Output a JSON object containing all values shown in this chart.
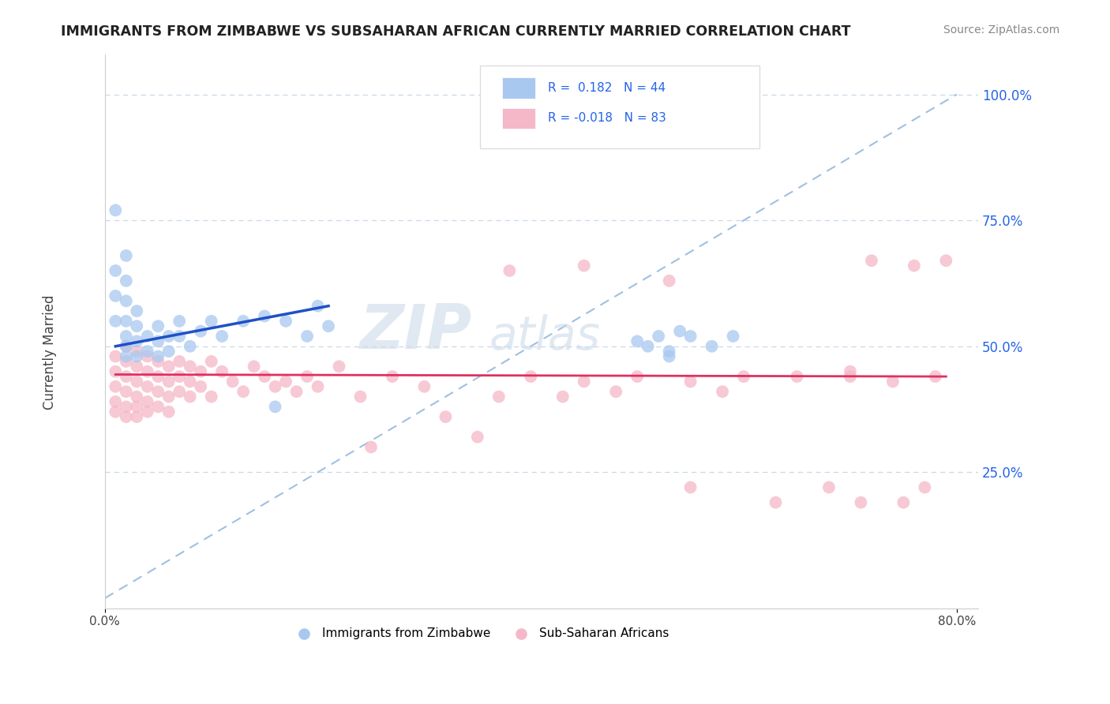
{
  "title": "IMMIGRANTS FROM ZIMBABWE VS SUBSAHARAN AFRICAN CURRENTLY MARRIED CORRELATION CHART",
  "source": "Source: ZipAtlas.com",
  "ylabel": "Currently Married",
  "legend_label1": "Immigrants from Zimbabwe",
  "legend_label2": "Sub-Saharan Africans",
  "ytick_labels": [
    "25.0%",
    "50.0%",
    "75.0%",
    "100.0%"
  ],
  "ytick_values": [
    0.25,
    0.5,
    0.75,
    1.0
  ],
  "xlim": [
    0.0,
    0.82
  ],
  "ylim": [
    -0.02,
    1.08
  ],
  "blue_color": "#A8C8F0",
  "pink_color": "#F5B8C8",
  "blue_line_color": "#1E50C8",
  "pink_line_color": "#E03060",
  "diag_line_color": "#A0C0E0",
  "background_color": "#FFFFFF",
  "watermark_zip": "ZIP",
  "watermark_atlas": "atlas",
  "title_color": "#222222",
  "source_color": "#888888",
  "right_tick_color": "#2563EB",
  "grid_color": "#C8D8E8",
  "blue_x": [
    0.01,
    0.01,
    0.01,
    0.01,
    0.02,
    0.02,
    0.02,
    0.02,
    0.02,
    0.02,
    0.02,
    0.03,
    0.03,
    0.03,
    0.03,
    0.04,
    0.04,
    0.05,
    0.05,
    0.05,
    0.06,
    0.06,
    0.07,
    0.07,
    0.08,
    0.09,
    0.1,
    0.11,
    0.13,
    0.15,
    0.16,
    0.17,
    0.19,
    0.2,
    0.21,
    0.5,
    0.51,
    0.52,
    0.53,
    0.53,
    0.54,
    0.55,
    0.57,
    0.59
  ],
  "blue_y": [
    0.77,
    0.65,
    0.6,
    0.55,
    0.68,
    0.63,
    0.59,
    0.55,
    0.52,
    0.5,
    0.48,
    0.57,
    0.54,
    0.51,
    0.48,
    0.52,
    0.49,
    0.54,
    0.51,
    0.48,
    0.52,
    0.49,
    0.55,
    0.52,
    0.5,
    0.53,
    0.55,
    0.52,
    0.55,
    0.56,
    0.38,
    0.55,
    0.52,
    0.58,
    0.54,
    0.51,
    0.5,
    0.52,
    0.49,
    0.48,
    0.53,
    0.52,
    0.5,
    0.52
  ],
  "pink_x": [
    0.01,
    0.01,
    0.01,
    0.01,
    0.01,
    0.02,
    0.02,
    0.02,
    0.02,
    0.02,
    0.02,
    0.03,
    0.03,
    0.03,
    0.03,
    0.03,
    0.03,
    0.04,
    0.04,
    0.04,
    0.04,
    0.04,
    0.05,
    0.05,
    0.05,
    0.05,
    0.06,
    0.06,
    0.06,
    0.06,
    0.07,
    0.07,
    0.07,
    0.08,
    0.08,
    0.08,
    0.09,
    0.09,
    0.1,
    0.1,
    0.11,
    0.12,
    0.13,
    0.14,
    0.15,
    0.16,
    0.17,
    0.18,
    0.19,
    0.2,
    0.22,
    0.24,
    0.25,
    0.27,
    0.3,
    0.32,
    0.35,
    0.37,
    0.38,
    0.4,
    0.43,
    0.45,
    0.48,
    0.5,
    0.53,
    0.55,
    0.58,
    0.6,
    0.63,
    0.65,
    0.68,
    0.7,
    0.72,
    0.74,
    0.75,
    0.76,
    0.77,
    0.78,
    0.79,
    0.7,
    0.71,
    0.55,
    0.45
  ],
  "pink_y": [
    0.48,
    0.45,
    0.42,
    0.39,
    0.37,
    0.5,
    0.47,
    0.44,
    0.41,
    0.38,
    0.36,
    0.49,
    0.46,
    0.43,
    0.4,
    0.38,
    0.36,
    0.48,
    0.45,
    0.42,
    0.39,
    0.37,
    0.47,
    0.44,
    0.41,
    0.38,
    0.46,
    0.43,
    0.4,
    0.37,
    0.47,
    0.44,
    0.41,
    0.46,
    0.43,
    0.4,
    0.45,
    0.42,
    0.47,
    0.4,
    0.45,
    0.43,
    0.41,
    0.46,
    0.44,
    0.42,
    0.43,
    0.41,
    0.44,
    0.42,
    0.46,
    0.4,
    0.3,
    0.44,
    0.42,
    0.36,
    0.32,
    0.4,
    0.65,
    0.44,
    0.4,
    0.43,
    0.41,
    0.44,
    0.63,
    0.43,
    0.41,
    0.44,
    0.19,
    0.44,
    0.22,
    0.44,
    0.67,
    0.43,
    0.19,
    0.66,
    0.22,
    0.44,
    0.67,
    0.45,
    0.19,
    0.22,
    0.66
  ],
  "blue_trend_x": [
    0.01,
    0.21
  ],
  "blue_trend_y": [
    0.5,
    0.58
  ],
  "pink_trend_x": [
    0.01,
    0.79
  ],
  "pink_trend_y": [
    0.444,
    0.44
  ]
}
